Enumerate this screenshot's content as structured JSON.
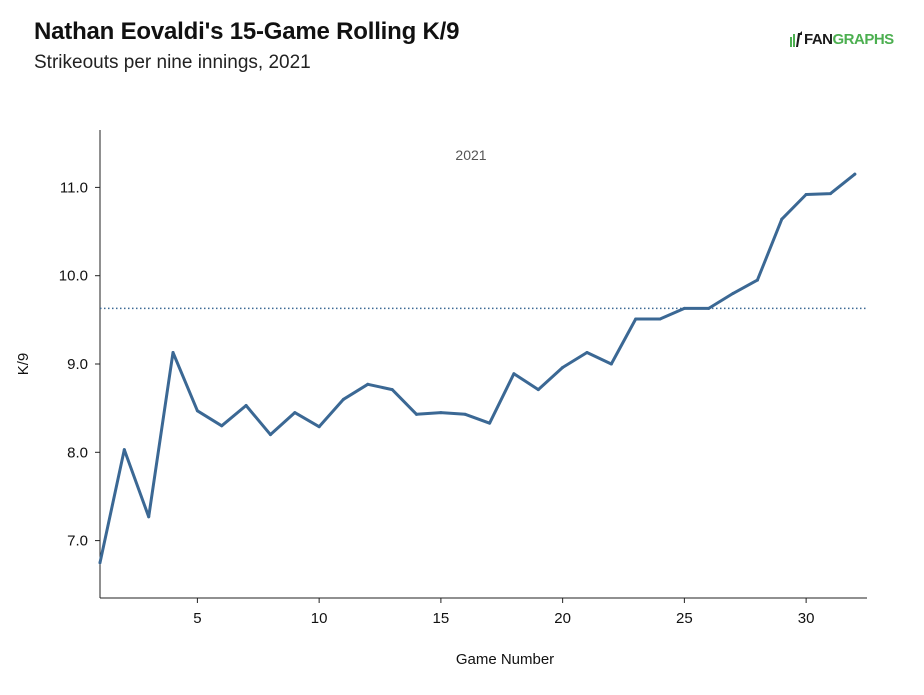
{
  "header": {
    "title": "Nathan Eovaldi's 15-Game Rolling K/9",
    "subtitle": "Strikeouts per nine innings, 2021",
    "logo_prefix": "FAN",
    "logo_suffix": "GRAPHS"
  },
  "colors": {
    "line": "#3b6894",
    "reference_line": "#3b6894",
    "axis": "#222222",
    "logo_green": "#4caf50"
  },
  "chart_data": {
    "type": "line",
    "title": "Nathan Eovaldi's 15-Game Rolling K/9",
    "subtitle": "Strikeouts per nine innings, 2021",
    "xlabel": "Game Number",
    "ylabel": "K/9",
    "xlim": [
      1,
      32.5
    ],
    "ylim": [
      6.35,
      11.65
    ],
    "xticks": [
      5,
      10,
      15,
      20,
      25,
      30
    ],
    "yticks": [
      7.0,
      8.0,
      9.0,
      10.0,
      11.0
    ],
    "ytick_labels": [
      "7.0",
      "8.0",
      "9.0",
      "10.0",
      "11.0"
    ],
    "annotation": "2021",
    "reference_line": {
      "y": 9.63,
      "style": "dotted"
    },
    "grid": false,
    "series": [
      {
        "x": [
          1,
          2,
          3,
          4,
          5,
          6,
          7,
          8,
          9,
          10,
          11,
          12,
          13,
          14,
          15,
          16,
          17,
          18,
          19,
          20,
          21,
          22,
          23,
          24,
          25,
          26,
          27,
          28,
          29,
          30,
          31,
          32
        ],
        "values": [
          6.75,
          8.03,
          7.27,
          9.13,
          8.47,
          8.3,
          8.53,
          8.2,
          8.45,
          8.29,
          8.6,
          8.77,
          8.71,
          8.43,
          8.45,
          8.43,
          8.33,
          8.89,
          8.71,
          8.96,
          9.13,
          9.0,
          9.51,
          9.51,
          9.63,
          9.63,
          9.8,
          9.95,
          10.64,
          10.92,
          10.93,
          11.15
        ]
      }
    ]
  }
}
